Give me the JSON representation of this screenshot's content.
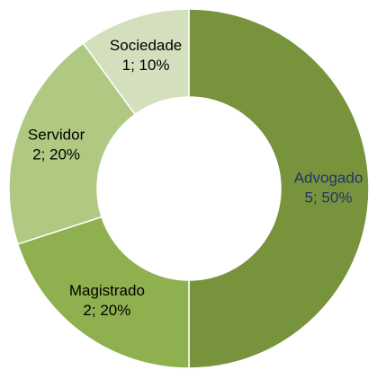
{
  "chart_data": {
    "type": "donut",
    "categories": [
      "Advogado",
      "Magistrado",
      "Servidor",
      "Sociedade"
    ],
    "values": [
      5,
      2,
      2,
      1
    ],
    "value_labels": [
      "5; 50%",
      "2; 20%",
      "2; 20%",
      "1; 10%"
    ],
    "colors": [
      "#77933c",
      "#8fb04f",
      "#b0c982",
      "#d3dfbd"
    ],
    "label_colors": [
      "#1f3469",
      "#000000",
      "#000000",
      "#000000"
    ]
  }
}
